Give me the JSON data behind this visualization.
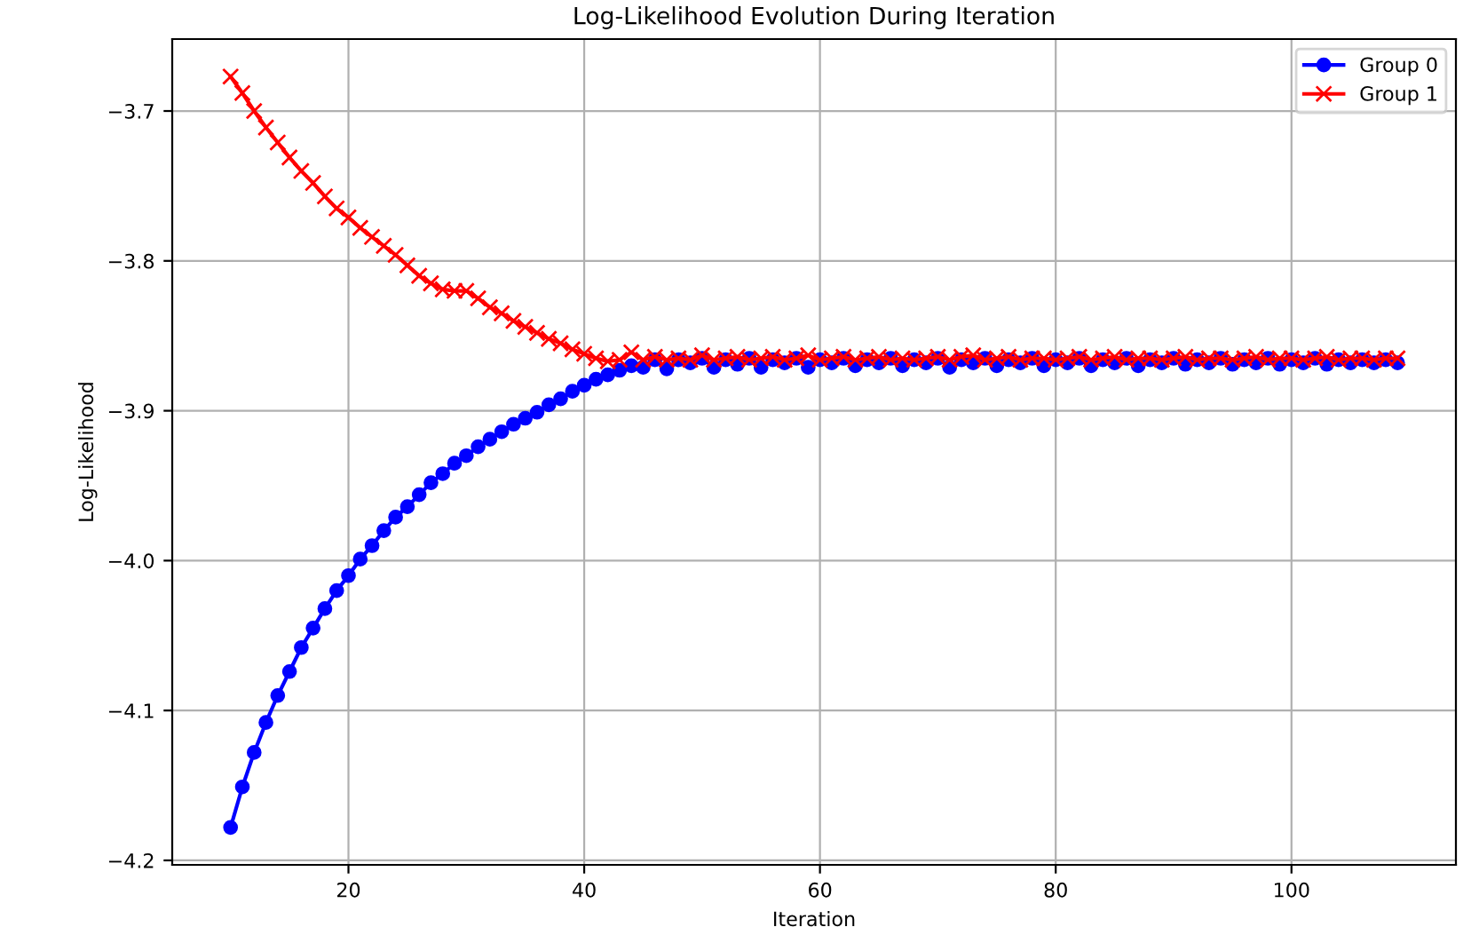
{
  "chart_data": {
    "type": "line",
    "title": "Log-Likelihood Evolution During Iteration",
    "xlabel": "Iteration",
    "ylabel": "Log-Likelihood",
    "x": [
      10,
      11,
      12,
      13,
      14,
      15,
      16,
      17,
      18,
      19,
      20,
      21,
      22,
      23,
      24,
      25,
      26,
      27,
      28,
      29,
      30,
      31,
      32,
      33,
      34,
      35,
      36,
      37,
      38,
      39,
      40,
      41,
      42,
      43,
      44,
      45,
      46,
      47,
      48,
      49,
      50,
      51,
      52,
      53,
      54,
      55,
      56,
      57,
      58,
      59,
      60,
      61,
      62,
      63,
      64,
      65,
      66,
      67,
      68,
      69,
      70,
      71,
      72,
      73,
      74,
      75,
      76,
      77,
      78,
      79,
      80,
      81,
      82,
      83,
      84,
      85,
      86,
      87,
      88,
      89,
      90,
      91,
      92,
      93,
      94,
      95,
      96,
      97,
      98,
      99,
      100,
      101,
      102,
      103,
      104,
      105,
      106,
      107,
      108,
      109
    ],
    "series": [
      {
        "name": "Group 0",
        "color": "#0000ff",
        "marker": "circle",
        "values": [
          -4.178,
          -4.151,
          -4.128,
          -4.108,
          -4.09,
          -4.074,
          -4.058,
          -4.045,
          -4.032,
          -4.02,
          -4.01,
          -3.999,
          -3.99,
          -3.98,
          -3.971,
          -3.964,
          -3.956,
          -3.948,
          -3.942,
          -3.935,
          -3.93,
          -3.924,
          -3.919,
          -3.914,
          -3.909,
          -3.905,
          -3.901,
          -3.896,
          -3.892,
          -3.887,
          -3.883,
          -3.879,
          -3.876,
          -3.873,
          -3.87,
          -3.871,
          -3.866,
          -3.872,
          -3.866,
          -3.868,
          -3.865,
          -3.871,
          -3.866,
          -3.869,
          -3.865,
          -3.871,
          -3.866,
          -3.868,
          -3.865,
          -3.871,
          -3.866,
          -3.868,
          -3.865,
          -3.87,
          -3.866,
          -3.868,
          -3.865,
          -3.87,
          -3.866,
          -3.868,
          -3.865,
          -3.871,
          -3.866,
          -3.868,
          -3.865,
          -3.87,
          -3.866,
          -3.868,
          -3.865,
          -3.87,
          -3.866,
          -3.868,
          -3.865,
          -3.87,
          -3.866,
          -3.868,
          -3.865,
          -3.87,
          -3.866,
          -3.868,
          -3.865,
          -3.869,
          -3.866,
          -3.868,
          -3.865,
          -3.869,
          -3.866,
          -3.868,
          -3.865,
          -3.869,
          -3.866,
          -3.868,
          -3.865,
          -3.869,
          -3.866,
          -3.868,
          -3.866,
          -3.868,
          -3.866,
          -3.868
        ]
      },
      {
        "name": "Group 1",
        "color": "#ff0000",
        "marker": "cross",
        "values": [
          -3.677,
          -3.688,
          -3.7,
          -3.711,
          -3.721,
          -3.731,
          -3.74,
          -3.748,
          -3.757,
          -3.765,
          -3.771,
          -3.778,
          -3.784,
          -3.79,
          -3.796,
          -3.803,
          -3.81,
          -3.815,
          -3.819,
          -3.82,
          -3.82,
          -3.825,
          -3.831,
          -3.835,
          -3.84,
          -3.844,
          -3.848,
          -3.852,
          -3.855,
          -3.859,
          -3.862,
          -3.865,
          -3.867,
          -3.866,
          -3.861,
          -3.866,
          -3.864,
          -3.866,
          -3.865,
          -3.866,
          -3.863,
          -3.866,
          -3.865,
          -3.864,
          -3.866,
          -3.865,
          -3.864,
          -3.866,
          -3.865,
          -3.863,
          -3.866,
          -3.865,
          -3.864,
          -3.866,
          -3.865,
          -3.864,
          -3.866,
          -3.865,
          -3.866,
          -3.865,
          -3.864,
          -3.866,
          -3.864,
          -3.863,
          -3.866,
          -3.865,
          -3.864,
          -3.866,
          -3.865,
          -3.865,
          -3.866,
          -3.865,
          -3.864,
          -3.866,
          -3.865,
          -3.864,
          -3.866,
          -3.865,
          -3.865,
          -3.866,
          -3.865,
          -3.864,
          -3.866,
          -3.865,
          -3.865,
          -3.866,
          -3.865,
          -3.864,
          -3.866,
          -3.865,
          -3.865,
          -3.866,
          -3.865,
          -3.864,
          -3.866,
          -3.865,
          -3.865,
          -3.866,
          -3.865,
          -3.865
        ]
      }
    ],
    "xlim": [
      5.05,
      113.95
    ],
    "ylim": [
      -4.203,
      -3.652
    ],
    "xticks": [
      20,
      40,
      60,
      80,
      100
    ],
    "yticks": [
      {
        "value": -4.2,
        "label": "−4.2"
      },
      {
        "value": -4.1,
        "label": "−4.1"
      },
      {
        "value": -4.0,
        "label": "−4.0"
      },
      {
        "value": -3.9,
        "label": "−3.9"
      },
      {
        "value": -3.8,
        "label": "−3.8"
      },
      {
        "value": -3.7,
        "label": "−3.7"
      }
    ],
    "grid": true,
    "legend": "top right"
  }
}
